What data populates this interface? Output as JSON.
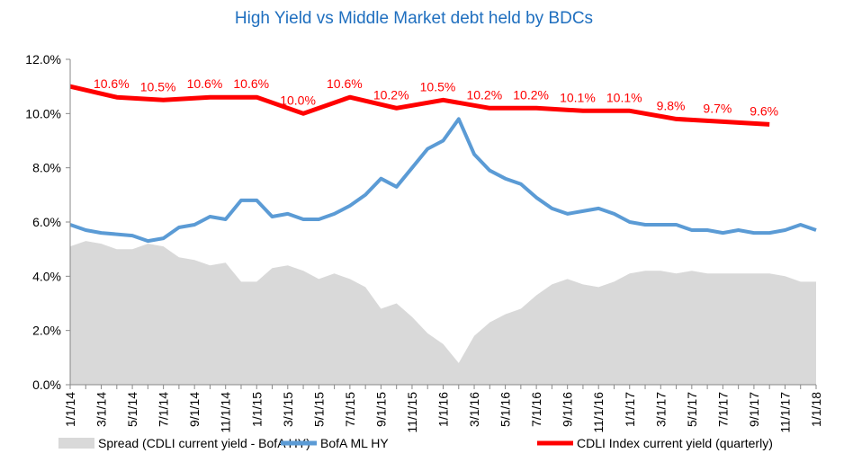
{
  "chart_data": {
    "type": "line",
    "title": "High Yield  vs  Middle Market debt held by BDCs",
    "categories": [
      "1/1/14",
      null,
      "3/1/14",
      null,
      "5/1/14",
      null,
      "7/1/14",
      null,
      "9/1/14",
      null,
      "11/1/14",
      null,
      "1/1/15",
      null,
      "3/1/15",
      null,
      "5/1/15",
      null,
      "7/1/15",
      null,
      "9/1/15",
      null,
      "11/1/15",
      null,
      "1/1/16",
      null,
      "3/1/16",
      null,
      "5/1/16",
      null,
      "7/1/16",
      null,
      "9/1/16",
      null,
      "11/1/16",
      null,
      "1/1/17",
      null,
      "3/1/17",
      null,
      "5/1/17",
      null,
      "7/1/17",
      null,
      "9/1/17",
      null,
      "11/1/17",
      null,
      "1/1/18"
    ],
    "ylim": [
      0,
      12
    ],
    "yticks": [
      {
        "value": 0,
        "label": "0.0%"
      },
      {
        "value": 2,
        "label": "2.0%"
      },
      {
        "value": 4,
        "label": "4.0%"
      },
      {
        "value": 6,
        "label": "6.0%"
      },
      {
        "value": 8,
        "label": "8.0%"
      },
      {
        "value": 10,
        "label": "10.0%"
      },
      {
        "value": 12,
        "label": "12.0%"
      }
    ],
    "grid": false,
    "legend": "bottom",
    "series": [
      {
        "name": "Spread (CDLI current yield - BofA HY)",
        "type": "area",
        "color": "#d9d9d9",
        "values": [
          5.1,
          5.3,
          5.2,
          5.0,
          5.0,
          5.2,
          5.1,
          4.7,
          4.6,
          4.4,
          4.5,
          3.8,
          3.8,
          4.3,
          4.4,
          4.2,
          3.9,
          4.1,
          3.9,
          3.6,
          2.8,
          3.0,
          2.5,
          1.9,
          1.5,
          0.8,
          1.8,
          2.3,
          2.6,
          2.8,
          3.3,
          3.7,
          3.9,
          3.7,
          3.6,
          3.8,
          4.1,
          4.2,
          4.2,
          4.1,
          4.2,
          4.1,
          4.1,
          4.1,
          4.1,
          4.1,
          4.0,
          3.8,
          3.8
        ]
      },
      {
        "name": "BofA ML HY",
        "type": "line",
        "color": "#5b9bd5",
        "values": [
          5.9,
          5.7,
          5.6,
          5.55,
          5.5,
          5.3,
          5.4,
          5.8,
          5.9,
          6.2,
          6.1,
          6.8,
          6.8,
          6.2,
          6.3,
          6.1,
          6.1,
          6.3,
          6.6,
          7.0,
          7.6,
          7.3,
          8.0,
          8.7,
          9.0,
          9.8,
          8.5,
          7.9,
          7.6,
          7.4,
          6.9,
          6.5,
          6.3,
          6.4,
          6.5,
          6.3,
          6.0,
          5.9,
          5.9,
          5.9,
          5.7,
          5.7,
          5.6,
          5.7,
          5.6,
          5.6,
          5.7,
          5.9,
          5.7
        ]
      },
      {
        "name": "CDLI Index current yield (quarterly)",
        "type": "line",
        "color": "#ff0000",
        "x": [
          "1/1/14",
          "4/1/14",
          "7/1/14",
          "10/1/14",
          "1/1/15",
          "4/1/15",
          "7/1/15",
          "10/1/15",
          "1/1/16",
          "4/1/16",
          "7/1/16",
          "10/1/16",
          "1/1/17",
          "4/1/17",
          "7/1/17",
          "10/1/17"
        ],
        "values": [
          11.0,
          10.6,
          10.5,
          10.6,
          10.6,
          10.0,
          10.6,
          10.2,
          10.5,
          10.2,
          10.2,
          10.1,
          10.1,
          9.8,
          9.7,
          9.6
        ],
        "value_labels": [
          null,
          "10.6%",
          "10.5%",
          "10.6%",
          "10.6%",
          "10.0%",
          "10.6%",
          "10.2%",
          "10.5%",
          "10.2%",
          "10.2%",
          "10.1%",
          "10.1%",
          "9.8%",
          "9.7%",
          "9.6%"
        ]
      }
    ]
  }
}
